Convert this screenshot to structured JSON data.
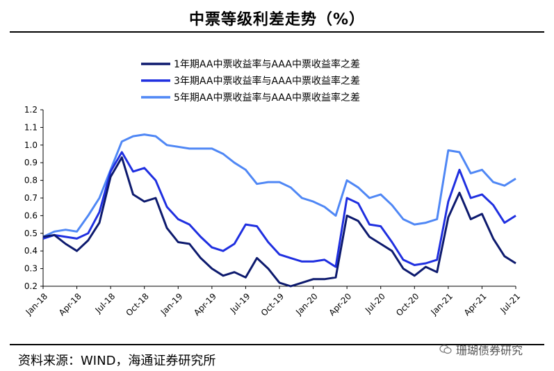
{
  "header": {
    "title": "中票等级利差走势（%）"
  },
  "footer": {
    "source": "资料来源：WIND，海通证券研究所",
    "watermark": "珊瑚债券研究"
  },
  "icons": {
    "watermark_icon": "wechat-icon"
  },
  "colors": {
    "series1": "#0d1a6e",
    "series2": "#1f2fe0",
    "series3": "#4f87f5"
  },
  "chart_data": {
    "type": "line",
    "xlabel": "",
    "ylabel": "",
    "ylim": [
      0.2,
      1.2
    ],
    "y_ticks": [
      "1.2",
      "1.1",
      "1.0",
      "0.9",
      "0.8",
      "0.7",
      "0.6",
      "0.5",
      "0.4",
      "0.3",
      "0.2"
    ],
    "x_ticks": [
      "Jan-18",
      "Apr-18",
      "Jul-18",
      "Oct-18",
      "Jan-19",
      "Apr-19",
      "Jul-19",
      "Oct-19",
      "Jan-20",
      "Apr-20",
      "Jul-20",
      "Oct-20",
      "Jan-21",
      "Apr-21",
      "Jul-21"
    ],
    "grid": false,
    "legend_position": "top-center",
    "x_start": "2018-01",
    "x_end": "2021-07",
    "series": [
      {
        "name": "1年期AA中票收益率与AAA中票收益率之差",
        "color": "#0d1a6e",
        "x": [
          "2018-01",
          "2018-02",
          "2018-03",
          "2018-04",
          "2018-05",
          "2018-06",
          "2018-07",
          "2018-08",
          "2018-09",
          "2018-10",
          "2018-11",
          "2018-12",
          "2019-01",
          "2019-02",
          "2019-03",
          "2019-04",
          "2019-05",
          "2019-06",
          "2019-07",
          "2019-08",
          "2019-09",
          "2019-10",
          "2019-11",
          "2019-12",
          "2020-01",
          "2020-02",
          "2020-03",
          "2020-04",
          "2020-05",
          "2020-06",
          "2020-07",
          "2020-08",
          "2020-09",
          "2020-10",
          "2020-11",
          "2020-12",
          "2021-01",
          "2021-02",
          "2021-03",
          "2021-04",
          "2021-05",
          "2021-06",
          "2021-07"
        ],
        "values": [
          0.48,
          0.49,
          0.44,
          0.4,
          0.46,
          0.56,
          0.82,
          0.93,
          0.72,
          0.68,
          0.7,
          0.53,
          0.45,
          0.44,
          0.36,
          0.3,
          0.26,
          0.28,
          0.25,
          0.36,
          0.3,
          0.22,
          0.2,
          0.22,
          0.24,
          0.24,
          0.25,
          0.6,
          0.57,
          0.48,
          0.44,
          0.4,
          0.3,
          0.26,
          0.31,
          0.28,
          0.59,
          0.73,
          0.58,
          0.61,
          0.47,
          0.37,
          0.33
        ]
      },
      {
        "name": "3年期AA中票收益率与AAA中票收益率之差",
        "color": "#1f2fe0",
        "x": [
          "2018-01",
          "2018-02",
          "2018-03",
          "2018-04",
          "2018-05",
          "2018-06",
          "2018-07",
          "2018-08",
          "2018-09",
          "2018-10",
          "2018-11",
          "2018-12",
          "2019-01",
          "2019-02",
          "2019-03",
          "2019-04",
          "2019-05",
          "2019-06",
          "2019-07",
          "2019-08",
          "2019-09",
          "2019-10",
          "2019-11",
          "2019-12",
          "2020-01",
          "2020-02",
          "2020-03",
          "2020-04",
          "2020-05",
          "2020-06",
          "2020-07",
          "2020-08",
          "2020-09",
          "2020-10",
          "2020-11",
          "2020-12",
          "2021-01",
          "2021-02",
          "2021-03",
          "2021-04",
          "2021-05",
          "2021-06",
          "2021-07"
        ],
        "values": [
          0.47,
          0.49,
          0.48,
          0.47,
          0.5,
          0.62,
          0.85,
          0.96,
          0.85,
          0.87,
          0.8,
          0.65,
          0.58,
          0.55,
          0.48,
          0.42,
          0.4,
          0.44,
          0.55,
          0.54,
          0.45,
          0.38,
          0.36,
          0.34,
          0.34,
          0.35,
          0.31,
          0.7,
          0.67,
          0.55,
          0.54,
          0.45,
          0.35,
          0.32,
          0.33,
          0.35,
          0.68,
          0.86,
          0.7,
          0.72,
          0.66,
          0.56,
          0.6
        ]
      },
      {
        "name": "5年期AA中票收益率与AAA中票收益率之差",
        "color": "#4f87f5",
        "x": [
          "2018-01",
          "2018-02",
          "2018-03",
          "2018-04",
          "2018-05",
          "2018-06",
          "2018-07",
          "2018-08",
          "2018-09",
          "2018-10",
          "2018-11",
          "2018-12",
          "2019-01",
          "2019-02",
          "2019-03",
          "2019-04",
          "2019-05",
          "2019-06",
          "2019-07",
          "2019-08",
          "2019-09",
          "2019-10",
          "2019-11",
          "2019-12",
          "2020-01",
          "2020-02",
          "2020-03",
          "2020-04",
          "2020-05",
          "2020-06",
          "2020-07",
          "2020-08",
          "2020-09",
          "2020-10",
          "2020-11",
          "2020-12",
          "2021-01",
          "2021-02",
          "2021-03",
          "2021-04",
          "2021-05",
          "2021-06",
          "2021-07"
        ],
        "values": [
          0.48,
          0.51,
          0.52,
          0.51,
          0.6,
          0.7,
          0.86,
          1.02,
          1.05,
          1.06,
          1.05,
          1.0,
          0.99,
          0.98,
          0.98,
          0.98,
          0.95,
          0.9,
          0.86,
          0.78,
          0.79,
          0.79,
          0.76,
          0.7,
          0.68,
          0.65,
          0.6,
          0.8,
          0.76,
          0.7,
          0.72,
          0.66,
          0.58,
          0.55,
          0.56,
          0.58,
          0.97,
          0.96,
          0.84,
          0.86,
          0.79,
          0.77,
          0.81
        ]
      }
    ]
  }
}
